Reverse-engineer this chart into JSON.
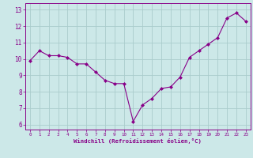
{
  "x": [
    0,
    1,
    2,
    3,
    4,
    5,
    6,
    7,
    8,
    9,
    10,
    11,
    12,
    13,
    14,
    15,
    16,
    17,
    18,
    19,
    20,
    21,
    22,
    23
  ],
  "y": [
    9.9,
    10.5,
    10.2,
    10.2,
    10.1,
    9.7,
    9.7,
    9.2,
    8.7,
    8.5,
    8.5,
    6.2,
    7.2,
    7.6,
    8.2,
    8.3,
    8.9,
    10.1,
    10.5,
    10.9,
    11.3,
    12.5,
    12.8,
    12.3
  ],
  "line_color": "#880088",
  "marker_color": "#880088",
  "bg_color": "#cce8e8",
  "grid_color": "#aacccc",
  "xlabel": "Windchill (Refroidissement éolien,°C)",
  "tick_color": "#880088",
  "ylim": [
    5.7,
    13.4
  ],
  "xlim": [
    -0.5,
    23.5
  ],
  "yticks": [
    6,
    7,
    8,
    9,
    10,
    11,
    12,
    13
  ],
  "xticks": [
    0,
    1,
    2,
    3,
    4,
    5,
    6,
    7,
    8,
    9,
    10,
    11,
    12,
    13,
    14,
    15,
    16,
    17,
    18,
    19,
    20,
    21,
    22,
    23
  ]
}
